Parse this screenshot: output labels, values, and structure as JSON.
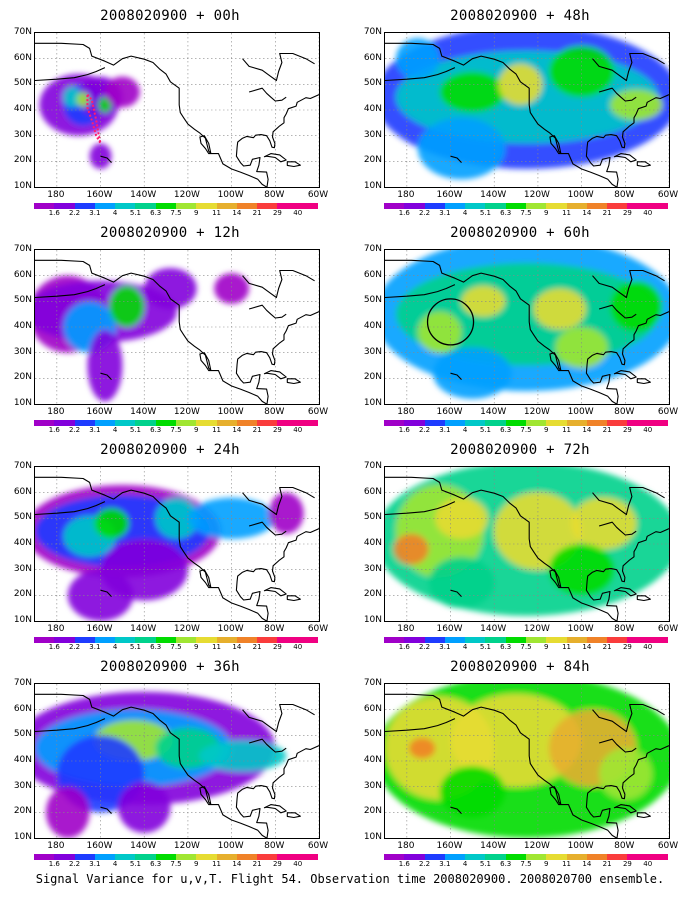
{
  "caption": "Signal Variance for u,v,T. Flight 54. Observation time 2008020900. 2008020700 ensemble.",
  "lat_labels": [
    "70N",
    "60N",
    "50N",
    "40N",
    "30N",
    "20N",
    "10N"
  ],
  "lon_labels": [
    "180",
    "160W",
    "140W",
    "120W",
    "100W",
    "80W",
    "60W"
  ],
  "colorbar": {
    "levels": [
      "1.6",
      "2.2",
      "3.1",
      "4",
      "5.1",
      "6.3",
      "7.5",
      "9",
      "11",
      "14",
      "21",
      "29",
      "40"
    ],
    "colors": [
      "#a000c8",
      "#8200dc",
      "#1e3cff",
      "#00a0ff",
      "#00c8c8",
      "#00d28c",
      "#00dc00",
      "#a0e632",
      "#e6dc32",
      "#e6af2d",
      "#f08228",
      "#fa3c3c",
      "#f00082"
    ]
  },
  "panels": [
    {
      "title": "2008020900 + 00h",
      "intensity": 0
    },
    {
      "title": "2008020900 + 48h",
      "intensity": 4
    },
    {
      "title": "2008020900 + 12h",
      "intensity": 1
    },
    {
      "title": "2008020900 + 60h",
      "intensity": 5
    },
    {
      "title": "2008020900 + 24h",
      "intensity": 2
    },
    {
      "title": "2008020900 + 72h",
      "intensity": 6
    },
    {
      "title": "2008020900 + 36h",
      "intensity": 3
    },
    {
      "title": "2008020900 + 84h",
      "intensity": 7
    }
  ]
}
